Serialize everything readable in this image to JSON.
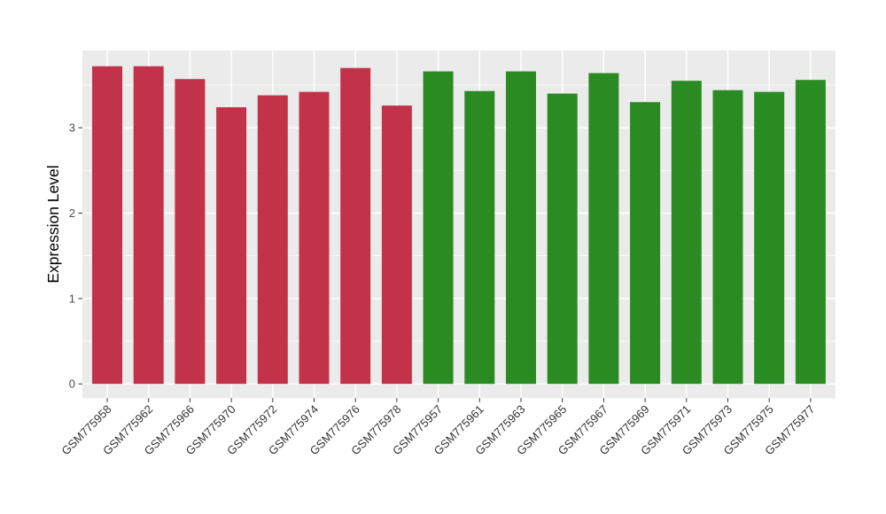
{
  "chart_data": {
    "type": "bar",
    "title": "",
    "ylabel": "Expression Level",
    "xlabel": "",
    "categories": [
      "GSM775958",
      "GSM775962",
      "GSM775966",
      "GSM775970",
      "GSM775972",
      "GSM775974",
      "GSM775976",
      "GSM775978",
      "GSM775957",
      "GSM775961",
      "GSM775963",
      "GSM775965",
      "GSM775967",
      "GSM775969",
      "GSM775971",
      "GSM775973",
      "GSM775975",
      "GSM775977"
    ],
    "values": [
      3.72,
      3.72,
      3.57,
      3.24,
      3.38,
      3.42,
      3.7,
      3.26,
      3.66,
      3.43,
      3.66,
      3.4,
      3.64,
      3.3,
      3.55,
      3.44,
      3.42,
      3.56
    ],
    "bar_colors": [
      "#C23349",
      "#C23349",
      "#C23349",
      "#C23349",
      "#C23349",
      "#C23349",
      "#C23349",
      "#C23349",
      "#2A8B22",
      "#2A8B22",
      "#2A8B22",
      "#2A8B22",
      "#2A8B22",
      "#2A8B22",
      "#2A8B22",
      "#2A8B22",
      "#2A8B22",
      "#2A8B22"
    ],
    "group_colors": {
      "left_group": "#C23349",
      "right_group": "#2A8B22"
    },
    "yticks": [
      0,
      1,
      2,
      3
    ],
    "yticks_minor": [
      0.5,
      1.5,
      2.5,
      3.5
    ],
    "ylim": [
      -0.17,
      3.9
    ],
    "grid": "on",
    "legend_position": "none",
    "x_label_angle_deg": 45,
    "panel_background": "#EBEBEB",
    "gridline_color": "#FFFFFF",
    "axis_text_color": "#4D4D4D",
    "x_axis_text_color": "#333333",
    "axis_title_color": "#000000",
    "tick_mark_color": "#333333"
  }
}
